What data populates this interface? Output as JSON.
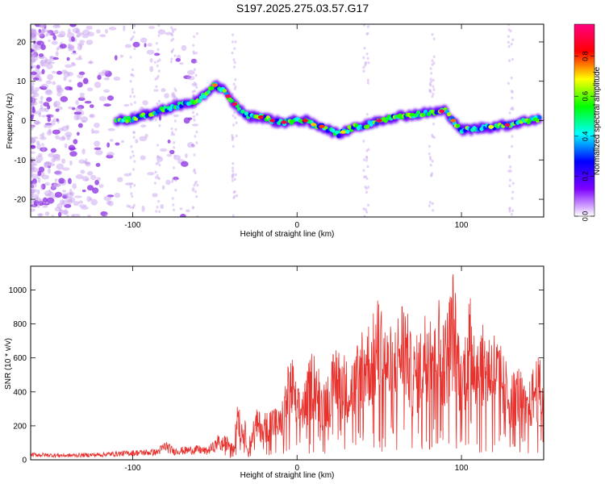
{
  "figure_title": "S197.2025.275.03.57.G17",
  "chart_data": [
    {
      "type": "heatmap",
      "title": "S197.2025.275.03.57.G17",
      "xlabel": "Height of straight line (km)",
      "ylabel": "Frequency (Hz)",
      "xlim": [
        -162,
        150
      ],
      "ylim": [
        -24.5,
        24.5
      ],
      "x_ticks": [
        -100,
        0,
        100
      ],
      "x_tick_labels": [
        "-100",
        "0",
        "100"
      ],
      "y_ticks": [
        -20,
        -10,
        0,
        10,
        20
      ],
      "y_tick_labels": [
        "-20",
        "-10",
        "0",
        "10",
        "20"
      ],
      "colorbar": {
        "label": "Normalized spectral amplitude",
        "range": [
          0,
          0.96
        ],
        "ticks": [
          0,
          0.2,
          0.4,
          0.6,
          0.8
        ],
        "tick_labels": [
          "0.0",
          "0.2",
          "0.4",
          "0.6",
          "0.8"
        ],
        "colormap": [
          "#ffffff",
          "#7f00ff",
          "#0000ff",
          "#00ffff",
          "#00ff00",
          "#ffff00",
          "#ff0000",
          "#ff0080"
        ]
      },
      "ridge_x": [
        -110,
        -100,
        -90,
        -80,
        -70,
        -60,
        -55,
        -50,
        -45,
        -40,
        -35,
        -30,
        -25,
        -20,
        -15,
        -10,
        -5,
        0,
        5,
        10,
        15,
        20,
        25,
        30,
        35,
        40,
        50,
        60,
        70,
        80,
        90,
        95,
        100,
        110,
        120,
        130,
        140,
        148
      ],
      "ridge_freq": [
        0,
        0.5,
        1.5,
        3,
        4,
        5,
        7,
        9,
        8,
        5,
        3,
        1,
        1,
        0.8,
        0,
        -0.5,
        -0.3,
        0,
        0,
        -1,
        -1.5,
        -2.5,
        -3.5,
        -2.5,
        -1.5,
        -1.5,
        0,
        1,
        1.5,
        2,
        2.5,
        0,
        -2.5,
        -2,
        -1.5,
        -1,
        0,
        0.5
      ],
      "noise_region_x": [
        -162,
        -60
      ]
    },
    {
      "type": "line",
      "xlabel": "Height of straight line (km)",
      "ylabel": "SNR (10 * v/v)",
      "xlim": [
        -162,
        150
      ],
      "ylim": [
        0,
        1140
      ],
      "x_ticks": [
        -100,
        0,
        100
      ],
      "x_tick_labels": [
        "-100",
        "0",
        "100"
      ],
      "y_ticks": [
        0,
        200,
        400,
        600,
        800,
        1000
      ],
      "y_tick_labels": [
        "0",
        "200",
        "400",
        "600",
        "800",
        "1000"
      ],
      "series": [
        {
          "name": "SNR",
          "color": "#e8322e",
          "x": [
            -162,
            -140,
            -120,
            -100,
            -85,
            -80,
            -75,
            -60,
            -55,
            -50,
            -45,
            -40,
            -38,
            -36,
            -34,
            -32,
            -30,
            -28,
            -25,
            -20,
            -15,
            -10,
            -5,
            -3,
            0,
            5,
            10,
            15,
            20,
            25,
            30,
            35,
            40,
            45,
            50,
            55,
            60,
            65,
            70,
            75,
            80,
            85,
            90,
            95,
            100,
            105,
            110,
            115,
            120,
            125,
            130,
            135,
            140,
            145,
            150
          ],
          "y": [
            30,
            25,
            30,
            40,
            45,
            80,
            50,
            60,
            50,
            80,
            140,
            140,
            120,
            440,
            250,
            260,
            120,
            190,
            300,
            280,
            330,
            300,
            590,
            620,
            420,
            480,
            700,
            480,
            540,
            770,
            600,
            630,
            860,
            820,
            1000,
            780,
            820,
            1020,
            690,
            780,
            1000,
            1020,
            840,
            1140,
            640,
            1000,
            810,
            790,
            780,
            650,
            520,
            570,
            400,
            620,
            580
          ]
        }
      ]
    }
  ]
}
